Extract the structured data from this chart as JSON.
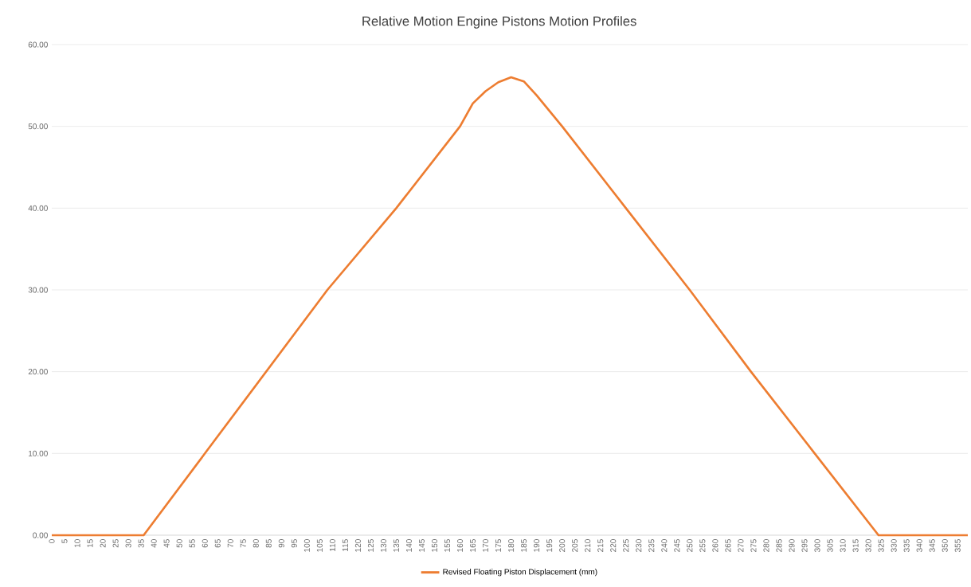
{
  "chart_data": {
    "type": "line",
    "title": "Relative Motion Engine Pistons Motion Profiles",
    "x": [
      0,
      36,
      60,
      84,
      108,
      135,
      160,
      165,
      170,
      175,
      180,
      185,
      190,
      200,
      225,
      250,
      274,
      299,
      324,
      359
    ],
    "series": [
      {
        "name": "Revised Floating Piston Displacement (mm)",
        "color": "#ed7d31",
        "values": [
          0,
          0,
          10,
          20,
          30,
          40,
          50,
          52.8,
          54.3,
          55.4,
          56,
          55.5,
          53.8,
          50,
          40,
          30,
          20,
          10,
          0,
          0
        ]
      }
    ],
    "xlim": [
      0,
      359
    ],
    "xticks": [
      0,
      5,
      10,
      15,
      20,
      25,
      30,
      35,
      40,
      45,
      50,
      55,
      60,
      65,
      70,
      75,
      80,
      85,
      90,
      95,
      100,
      105,
      110,
      115,
      120,
      125,
      130,
      135,
      140,
      145,
      150,
      155,
      160,
      165,
      170,
      175,
      180,
      185,
      190,
      195,
      200,
      205,
      210,
      215,
      220,
      225,
      230,
      235,
      240,
      245,
      250,
      255,
      260,
      265,
      270,
      275,
      280,
      285,
      290,
      295,
      300,
      305,
      310,
      315,
      320,
      325,
      330,
      335,
      340,
      345,
      350,
      355
    ],
    "ylim": [
      0,
      60
    ],
    "yticks": [
      {
        "value": 0,
        "label": "0.00"
      },
      {
        "value": 10,
        "label": "10.00"
      },
      {
        "value": 20,
        "label": "20.00"
      },
      {
        "value": 30,
        "label": "30.00"
      },
      {
        "value": 40,
        "label": "40.00"
      },
      {
        "value": 50,
        "label": "50.00"
      },
      {
        "value": 60,
        "label": "60.00"
      }
    ],
    "grid": "y",
    "legend": "bottom",
    "marker": "none",
    "line_style": "solid"
  }
}
